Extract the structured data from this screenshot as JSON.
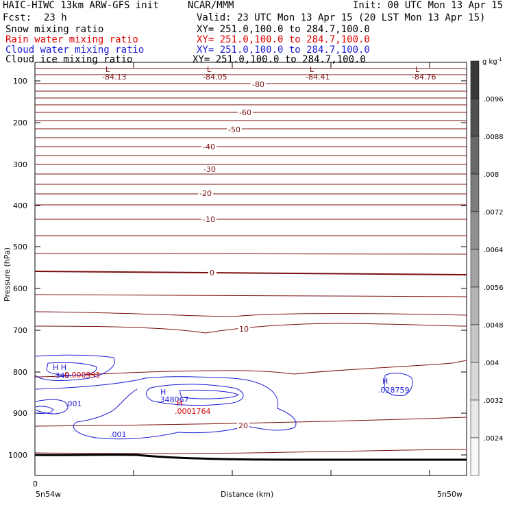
{
  "header": {
    "title": "HAIC-HIWC 13km ARW-GFS init",
    "org": "NCAR/MMM",
    "init": "Init: 00 UTC Mon 13 Apr 15",
    "fcst_label": "Fcst:",
    "fcst_value": "23 h",
    "valid": "Valid: 23 UTC Mon 13 Apr 15 (20 LST Mon 13 Apr 15)"
  },
  "fields": [
    {
      "name": "Snow mixing ratio",
      "xy": "XY= 251.0,100.0 to 284.7,100.0",
      "color": "#000000"
    },
    {
      "name": "Rain water mixing ratio",
      "xy": "XY= 251.0,100.0 to 284.7,100.0",
      "color": "#e00000"
    },
    {
      "name": "Cloud water mixing ratio",
      "xy": "XY= 251.0,100.0 to 284.7,100.0",
      "color": "#1a1ad6"
    },
    {
      "name": "Cloud ice mixing ratio",
      "xy": "XY= 251.0,100.0 to 284.7,100.0",
      "color": "#000000"
    }
  ],
  "colorbar": {
    "unit": "g kg",
    "unit_sup": "-1",
    "ticks": [
      ".0096",
      ".0088",
      ".008",
      ".0072",
      ".0064",
      ".0056",
      ".0048",
      ".004",
      ".0032",
      ".0024"
    ]
  },
  "chart_data": {
    "type": "contour",
    "ylabel": "Pressure (hPa)",
    "xlabel": "Distance (km)",
    "x_origin_label": "0",
    "x_left_label": "5n54w",
    "x_right_label": "5n50w",
    "y_ticks": [
      100,
      200,
      300,
      400,
      500,
      600,
      700,
      800,
      900,
      1000
    ],
    "temperature_contour_labels": [
      "-80",
      "-60",
      "-50",
      "-40",
      "-30",
      "-20",
      "-10",
      "0",
      "10",
      "20"
    ],
    "lows": [
      {
        "mark": "L",
        "value": "-84.13"
      },
      {
        "mark": "L",
        "value": "-84.05"
      },
      {
        "mark": "L",
        "value": "-84.41"
      },
      {
        "mark": "L",
        "value": "-84.76"
      }
    ],
    "cloud_water_labels": [
      {
        "mark": "H H",
        "value": ".349"
      },
      {
        "mark": "H",
        "value": ".348067"
      },
      {
        "mark": "H",
        "value": ".028759"
      },
      {
        "mark": "",
        "value": ".001"
      },
      {
        "mark": "",
        "value": ".001"
      }
    ],
    "rain_water_labels": [
      {
        "mark": "",
        "value": "0.000991"
      },
      {
        "mark": "H",
        "value": ".0001764"
      }
    ]
  }
}
